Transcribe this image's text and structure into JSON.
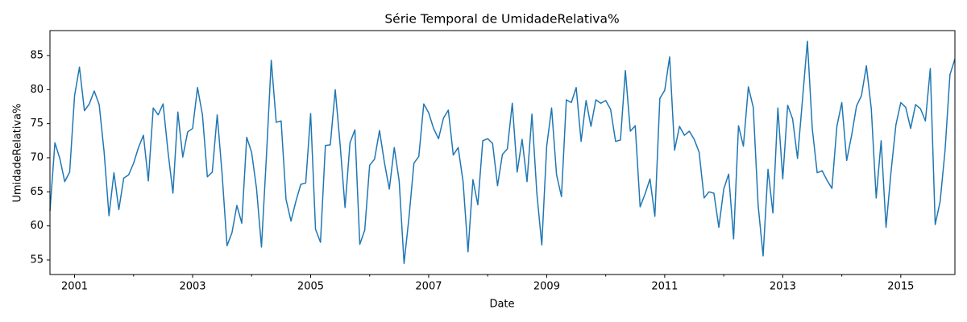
{
  "chart_data": {
    "type": "line",
    "title": "Série Temporal de UmidadeRelativa%",
    "xlabel": "Date",
    "ylabel": "UmidadeRelativa%",
    "x": [
      2000.583,
      2000.667,
      2000.75,
      2000.833,
      2000.917,
      2001,
      2001.083,
      2001.167,
      2001.25,
      2001.333,
      2001.417,
      2001.5,
      2001.583,
      2001.667,
      2001.75,
      2001.833,
      2001.917,
      2002,
      2002.083,
      2002.167,
      2002.25,
      2002.333,
      2002.417,
      2002.5,
      2002.583,
      2002.667,
      2002.75,
      2002.833,
      2002.917,
      2003,
      2003.083,
      2003.167,
      2003.25,
      2003.333,
      2003.417,
      2003.5,
      2003.583,
      2003.667,
      2003.75,
      2003.833,
      2003.917,
      2004,
      2004.083,
      2004.167,
      2004.25,
      2004.333,
      2004.417,
      2004.5,
      2004.583,
      2004.667,
      2004.75,
      2004.833,
      2004.917,
      2005,
      2005.083,
      2005.167,
      2005.25,
      2005.333,
      2005.417,
      2005.5,
      2005.583,
      2005.667,
      2005.75,
      2005.833,
      2005.917,
      2006,
      2006.083,
      2006.167,
      2006.25,
      2006.333,
      2006.417,
      2006.5,
      2006.583,
      2006.667,
      2006.75,
      2006.833,
      2006.917,
      2007,
      2007.083,
      2007.167,
      2007.25,
      2007.333,
      2007.417,
      2007.5,
      2007.583,
      2007.667,
      2007.75,
      2007.833,
      2007.917,
      2008,
      2008.083,
      2008.167,
      2008.25,
      2008.333,
      2008.417,
      2008.5,
      2008.583,
      2008.667,
      2008.75,
      2008.833,
      2008.917,
      2009,
      2009.083,
      2009.167,
      2009.25,
      2009.333,
      2009.417,
      2009.5,
      2009.583,
      2009.667,
      2009.75,
      2009.833,
      2009.917,
      2010,
      2010.083,
      2010.167,
      2010.25,
      2010.333,
      2010.417,
      2010.5,
      2010.583,
      2010.667,
      2010.75,
      2010.833,
      2010.917,
      2011,
      2011.083,
      2011.167,
      2011.25,
      2011.333,
      2011.417,
      2011.5,
      2011.583,
      2011.667,
      2011.75,
      2011.833,
      2011.917,
      2012,
      2012.083,
      2012.167,
      2012.25,
      2012.333,
      2012.417,
      2012.5,
      2012.583,
      2012.667,
      2012.75,
      2012.833,
      2012.917,
      2013,
      2013.083,
      2013.167,
      2013.25,
      2013.333,
      2013.417,
      2013.5,
      2013.583,
      2013.667,
      2013.75,
      2013.833,
      2013.917,
      2014,
      2014.083,
      2014.167,
      2014.25,
      2014.333,
      2014.417,
      2014.5,
      2014.583,
      2014.667,
      2014.75,
      2014.833,
      2014.917,
      2015,
      2015.083,
      2015.167,
      2015.25,
      2015.333,
      2015.417,
      2015.5,
      2015.583,
      2015.667,
      2015.75,
      2015.833,
      2015.917
    ],
    "series": [
      {
        "color": "#1f77b4",
        "values": [
          62.2,
          72.2,
          69.9,
          66.5,
          67.9,
          79.1,
          83.3,
          76.9,
          77.9,
          79.8,
          77.8,
          70.9,
          61.5,
          67.8,
          62.4,
          67.0,
          67.5,
          69.2,
          71.5,
          73.3,
          66.6,
          77.3,
          76.3,
          77.9,
          70.9,
          64.8,
          76.7,
          70.1,
          73.8,
          74.3,
          80.3,
          76.3,
          67.2,
          67.9,
          76.3,
          67.6,
          57.1,
          59.0,
          63.0,
          60.4,
          73.0,
          70.8,
          65.5,
          56.9,
          70.1,
          84.3,
          75.2,
          75.4,
          63.9,
          60.7,
          63.6,
          66.1,
          66.3,
          76.5,
          59.5,
          57.6,
          71.8,
          71.9,
          80.0,
          71.9,
          62.7,
          72.2,
          74.1,
          57.3,
          59.4,
          68.9,
          69.8,
          74.0,
          69.3,
          65.4,
          71.5,
          66.6,
          54.5,
          61.3,
          69.2,
          70.2,
          77.9,
          76.6,
          74.3,
          72.8,
          75.8,
          77.0,
          70.4,
          71.5,
          66.5,
          56.2,
          66.8,
          63.1,
          72.5,
          72.8,
          72.1,
          65.9,
          70.5,
          71.3,
          78.0,
          67.9,
          72.7,
          66.5,
          76.4,
          64.8,
          57.2,
          71.7,
          77.3,
          67.5,
          64.3,
          78.5,
          78.1,
          80.3,
          72.4,
          78.4,
          74.6,
          78.5,
          78.0,
          78.4,
          77.1,
          72.4,
          72.6,
          82.8,
          73.9,
          74.7,
          62.8,
          64.7,
          66.9,
          61.4,
          78.7,
          79.9,
          84.8,
          71.1,
          74.6,
          73.3,
          73.9,
          72.7,
          70.8,
          64.1,
          65.0,
          64.8,
          59.8,
          65.4,
          67.6,
          58.1,
          74.7,
          71.7,
          80.4,
          77.4,
          63.0,
          55.6,
          68.3,
          61.9,
          77.3,
          66.9,
          77.7,
          75.7,
          69.9,
          78.4,
          87.1,
          74.3,
          67.8,
          68.1,
          66.7,
          65.5,
          74.6,
          78.1,
          69.6,
          73.3,
          77.6,
          79.1,
          83.5,
          77.2,
          64.1,
          72.5,
          59.8,
          67.8,
          74.8,
          78.1,
          77.4,
          74.3,
          77.8,
          77.2,
          75.4,
          83.1,
          60.2,
          63.6,
          71.1,
          82.2,
          84.5
        ]
      }
    ],
    "xlim": [
      2000.583,
      2015.917
    ],
    "xticks": [
      2001,
      2003,
      2005,
      2007,
      2009,
      2011,
      2013,
      2015
    ],
    "xminorticks": [
      2002,
      2004,
      2006,
      2008,
      2010,
      2012,
      2014
    ],
    "ylim": [
      52.87,
      88.66
    ],
    "yticks": [
      55,
      60,
      65,
      70,
      75,
      80,
      85
    ]
  }
}
